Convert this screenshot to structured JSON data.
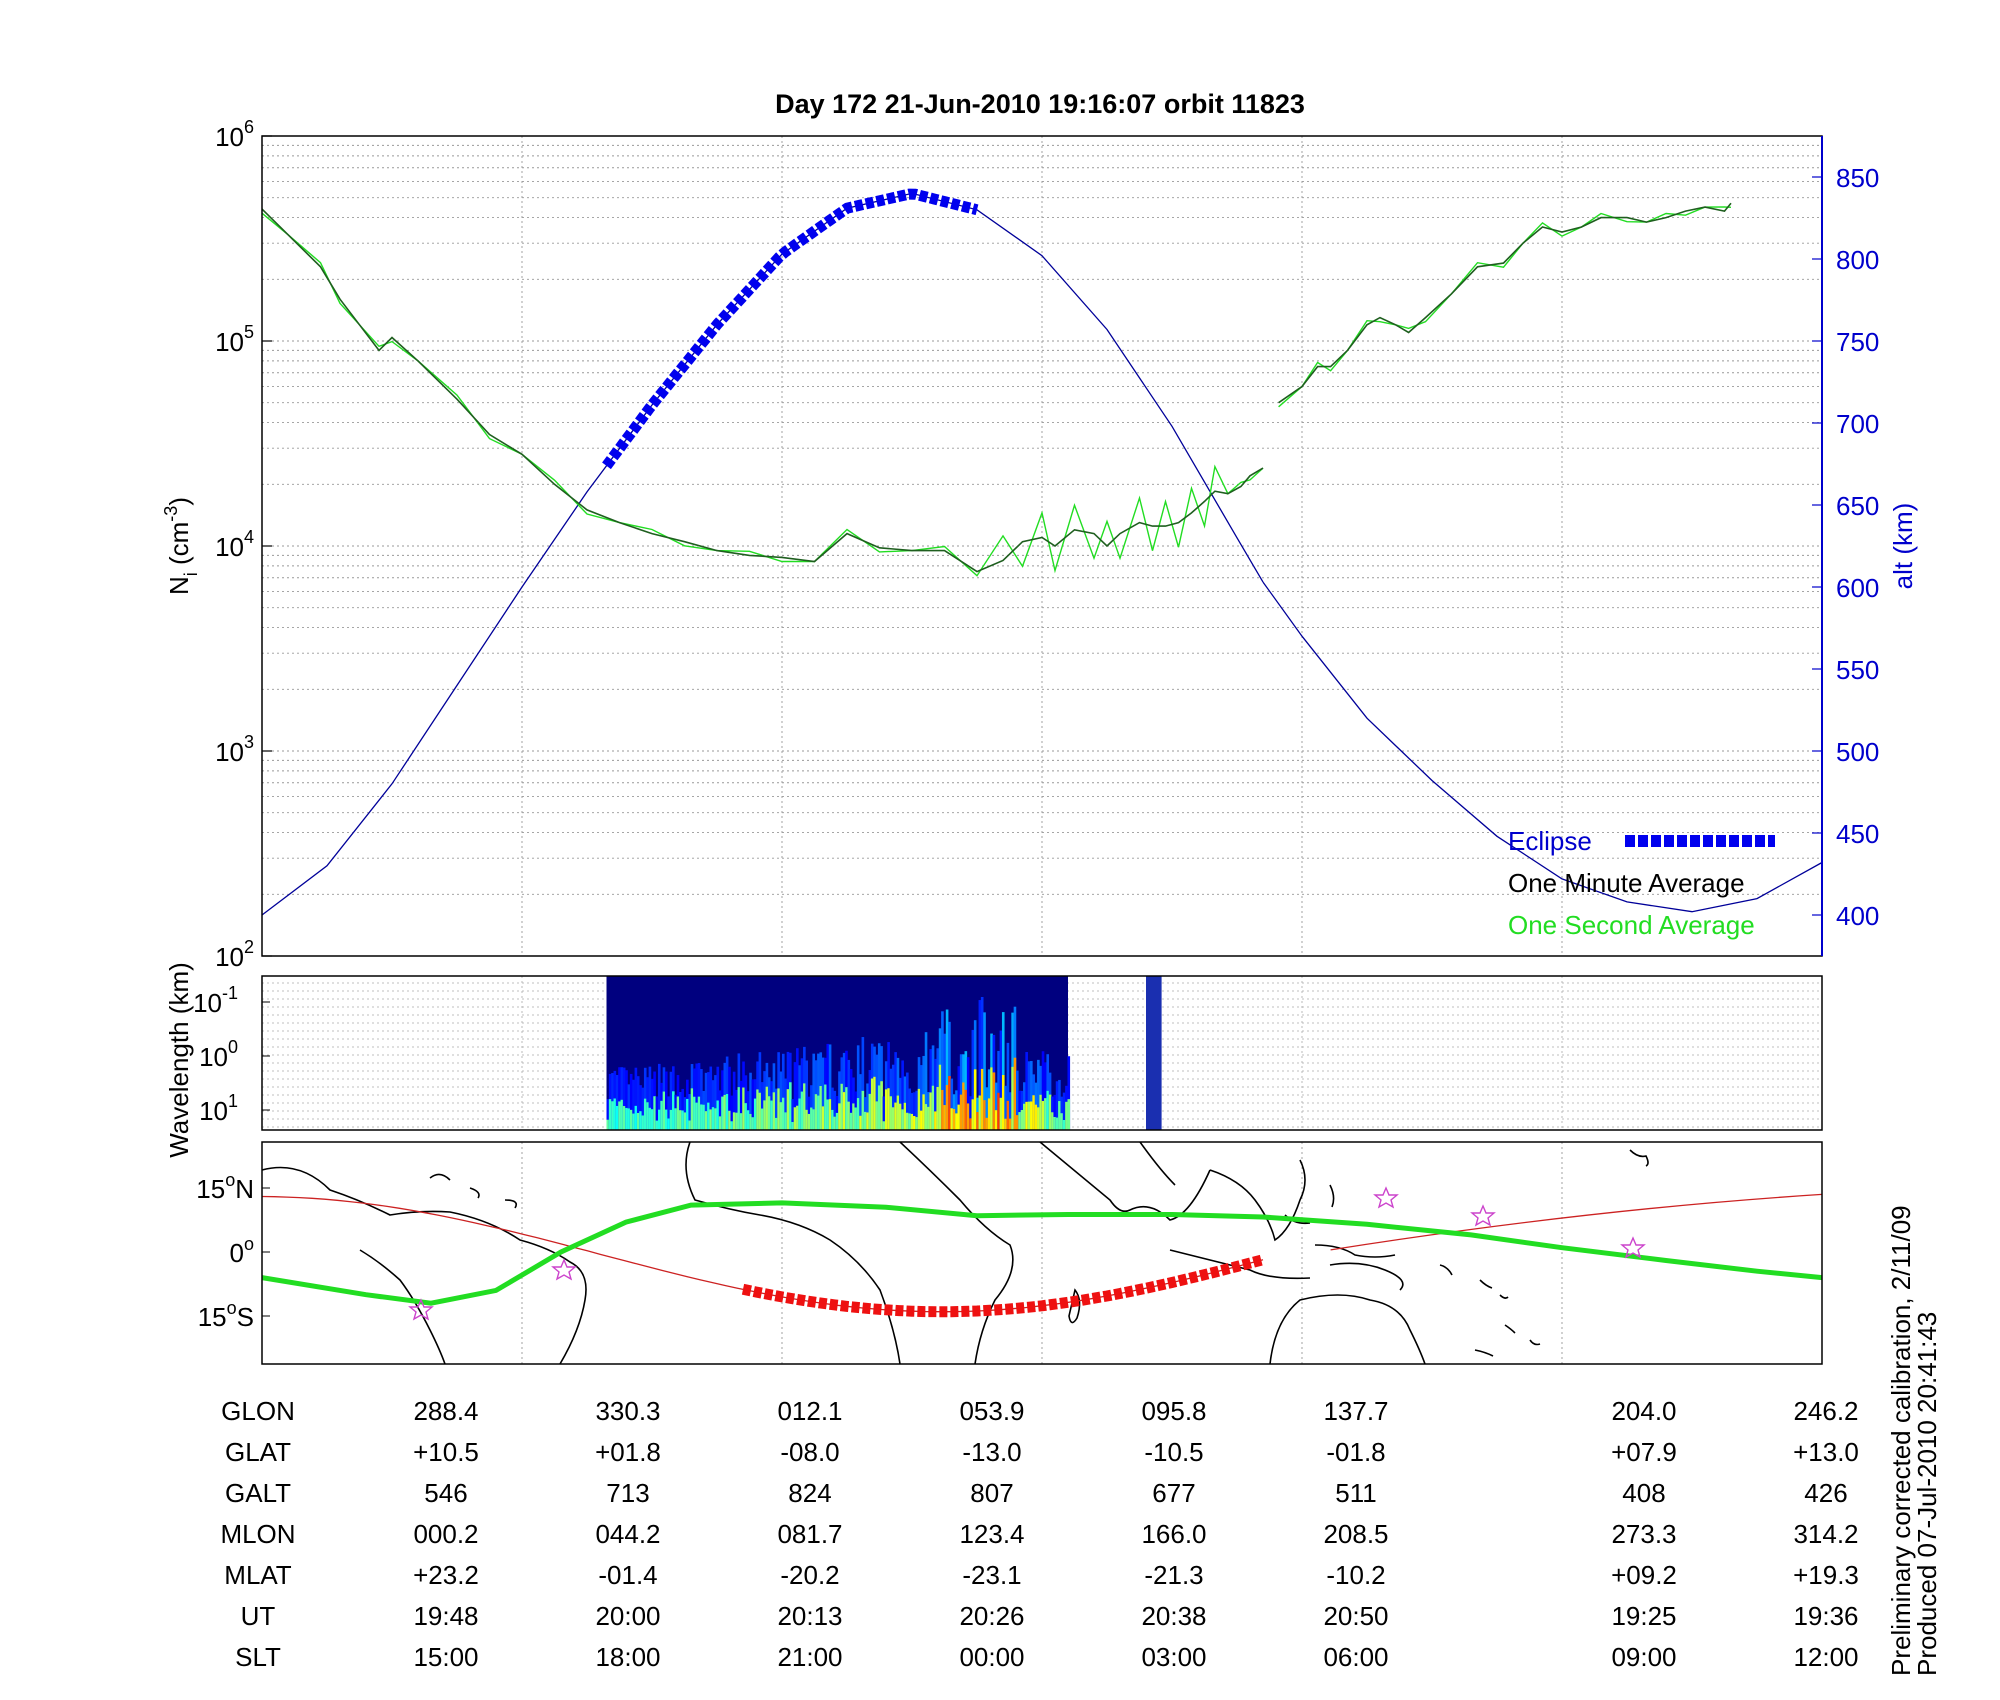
{
  "chart_data": [
    {
      "type": "line",
      "title": "Day 172  21-Jun-2010 19:16:07   orbit 11823",
      "ylabel": "N",
      "ylabel_subscript": "i",
      "ylabel_unit": " (cm",
      "ylabel_unit_exp": "-3",
      "ylabel_close": ")",
      "yscale": "log",
      "ylim": [
        100,
        1000000
      ],
      "yticks": [
        {
          "base": "10",
          "exp": "2",
          "value": 100
        },
        {
          "base": "10",
          "exp": "3",
          "value": 1000
        },
        {
          "base": "10",
          "exp": "4",
          "value": 10000
        },
        {
          "base": "10",
          "exp": "5",
          "value": 100000
        },
        {
          "base": "10",
          "exp": "6",
          "value": 1000000
        }
      ],
      "y2label": "alt (km)",
      "y2lim": [
        375,
        875
      ],
      "y2ticks": [
        "400",
        "450",
        "500",
        "550",
        "600",
        "650",
        "700",
        "750",
        "800",
        "850"
      ],
      "xlim": [
        0,
        8.6
      ],
      "grid": true,
      "legend": {
        "placement": "bottom-right",
        "entries": [
          "Eclipse",
          "One Minute Average",
          "One Second Average"
        ],
        "colors": [
          "#0000ee",
          "#000000",
          "#22dd22"
        ]
      },
      "series": [
        {
          "name": "One Minute Average",
          "color": "#1f5f1f",
          "segments": [
            {
              "x": [
                0,
                0.2,
                0.45,
                0.6,
                0.75,
                0.9,
                1.0,
                1.2,
                1.5,
                1.75,
                2.0,
                2.25,
                2.5,
                2.75,
                3.0,
                3.25,
                3.5,
                3.75,
                4.0,
                4.25,
                4.5,
                4.75,
                5.0,
                5.25,
                5.5,
                5.7,
                5.85,
                6.0,
                6.1,
                6.25,
                6.4,
                6.5,
                6.6,
                6.75,
                6.85,
                6.95,
                7.05,
                7.15,
                7.25,
                7.33,
                7.43,
                7.53,
                7.6,
                7.7
              ],
              "y": [
                440000,
                330000,
                230000,
                160000,
                120000,
                90000,
                104000,
                80000,
                52000,
                35000,
                28000,
                20000,
                15000,
                13000,
                11500,
                10500,
                9500,
                9000,
                8800,
                8400,
                11500,
                9800,
                9500,
                9500,
                7500,
                8500,
                10500,
                11000,
                10000,
                12000,
                11500,
                10000,
                11500,
                13000,
                12500,
                12500,
                13000,
                14500,
                16500,
                18500,
                18000,
                19500,
                22000,
                24000
              ]
            },
            {
              "x": [
                7.82,
                8.0,
                8.12,
                8.22,
                8.35,
                8.5,
                8.6,
                8.72,
                8.82,
                8.95,
                9.15,
                9.35,
                9.55,
                9.7,
                9.85,
                10.0,
                10.15,
                10.3,
                10.5,
                10.65,
                10.8,
                10.95,
                11.1,
                11.25,
                11.3
              ],
              "y": [
                50000,
                60000,
                75000,
                75000,
                90000,
                120000,
                130000,
                120000,
                110000,
                130000,
                170000,
                230000,
                240000,
                300000,
                360000,
                340000,
                360000,
                400000,
                400000,
                380000,
                400000,
                430000,
                450000,
                430000,
                470000
              ]
            }
          ]
        },
        {
          "name": "altitude",
          "axis": "right",
          "color": "#000099",
          "segments": [
            {
              "x": [
                0.0,
                0.5,
                1.0,
                1.5,
                2.0,
                2.5,
                3.0,
                3.5,
                4.0,
                4.5,
                5.0,
                5.5,
                6.0,
                6.5,
                7.0,
                7.5,
                7.7
              ],
              "y": [
                400,
                430,
                480,
                540,
                600,
                658,
                711,
                760,
                803,
                831,
                840,
                830,
                802,
                757,
                698,
                630,
                603
              ]
            },
            {
              "x": [
                7.7,
                8.0,
                8.5,
                9.0,
                9.5,
                10.0,
                10.5,
                11.0,
                11.5,
                12.0
              ],
              "y": [
                603,
                570,
                520,
                482,
                448,
                422,
                408,
                402,
                410,
                432
              ]
            }
          ]
        },
        {
          "name": "Eclipse",
          "axis": "right",
          "color": "#0000ee",
          "x_range": [
            2.65,
            5.5
          ]
        }
      ]
    },
    {
      "type": "heatmap",
      "ylabel": "Wavelength (km)",
      "yscale": "log",
      "yticks": [
        {
          "base": "10",
          "exp": "-1"
        },
        {
          "base": "10",
          "exp": "0"
        },
        {
          "base": "10",
          "exp": "1"
        }
      ],
      "data_x_ranges": [
        [
          2.65,
          6.2
        ],
        [
          6.8,
          6.92
        ]
      ],
      "colormap": "jet",
      "peak_activity_x": [
        5.2,
        5.8
      ]
    },
    {
      "type": "map",
      "yticks": [
        {
          "value": "15",
          "hemi": "N"
        },
        {
          "value": "0",
          "hemi": ""
        },
        {
          "value": "15",
          "hemi": "S"
        }
      ],
      "series": [
        {
          "name": "orbit track",
          "color": "#cc2222"
        },
        {
          "name": "magnetic equator",
          "color": "#22dd22"
        },
        {
          "name": "Eclipse",
          "color": "#ee1111"
        }
      ]
    }
  ],
  "table": {
    "rows": [
      {
        "label": "GLON",
        "values": [
          "288.4",
          "330.3",
          "012.1",
          "053.9",
          "095.8",
          "137.7",
          "204.0",
          "246.2"
        ]
      },
      {
        "label": "GLAT",
        "values": [
          "+10.5",
          "+01.8",
          "-08.0",
          "-13.0",
          "-10.5",
          "-01.8",
          "+07.9",
          "+13.0"
        ]
      },
      {
        "label": "GALT",
        "values": [
          "546",
          "713",
          "824",
          "807",
          "677",
          "511",
          "408",
          "426"
        ]
      },
      {
        "label": "MLON",
        "values": [
          "000.2",
          "044.2",
          "081.7",
          "123.4",
          "166.0",
          "208.5",
          "273.3",
          "314.2"
        ]
      },
      {
        "label": "MLAT",
        "values": [
          "+23.2",
          "-01.4",
          "-20.2",
          "-23.1",
          "-21.3",
          "-10.2",
          "+09.2",
          "+19.3"
        ]
      },
      {
        "label": "UT",
        "values": [
          "19:48",
          "20:00",
          "20:13",
          "20:26",
          "20:38",
          "20:50",
          "19:25",
          "19:36"
        ]
      },
      {
        "label": "SLT",
        "values": [
          "15:00",
          "18:00",
          "21:00",
          "00:00",
          "03:00",
          "06:00",
          "09:00",
          "12:00"
        ]
      }
    ]
  },
  "footnote": {
    "line1": "Preliminary corrected calibration, 2/11/09",
    "line2": "Produced 07-Jul-2010 20:41:43"
  }
}
